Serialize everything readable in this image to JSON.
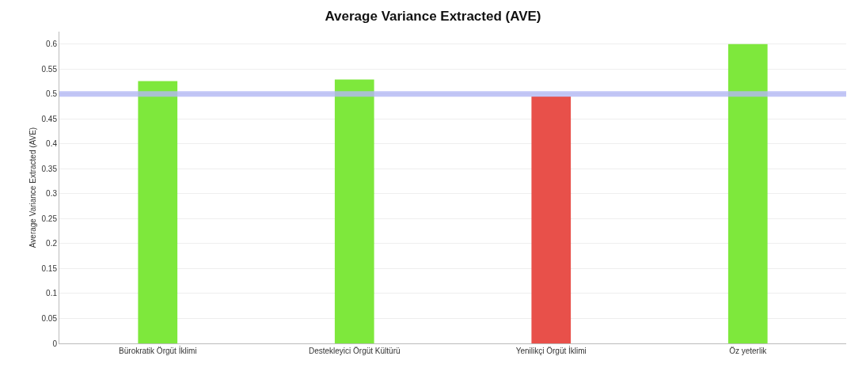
{
  "chart_data": {
    "type": "bar",
    "title": "Average Variance Extracted (AVE)",
    "ylabel": "Average Variance Extracted (AVE)",
    "categories": [
      "Bürokratik Örgüt İklimi",
      "Destekleyici Örgüt Kültürü",
      "Yenilikçi Örgüt İklimi",
      "Öz yeterlik"
    ],
    "values": [
      0.526,
      0.529,
      0.495,
      0.6
    ],
    "colors": [
      "#7ee83c",
      "#7ee83c",
      "#e8504a",
      "#7ee83c"
    ],
    "ylim": [
      0,
      0.625
    ],
    "yticks": [
      0,
      0.05,
      0.1,
      0.15,
      0.2,
      0.25,
      0.3,
      0.35,
      0.4,
      0.45,
      0.5,
      0.55,
      0.6
    ],
    "grid": "y",
    "ref_lines": [
      {
        "axis": "y",
        "value": 0.5,
        "color": "#b4b8f4"
      }
    ]
  }
}
